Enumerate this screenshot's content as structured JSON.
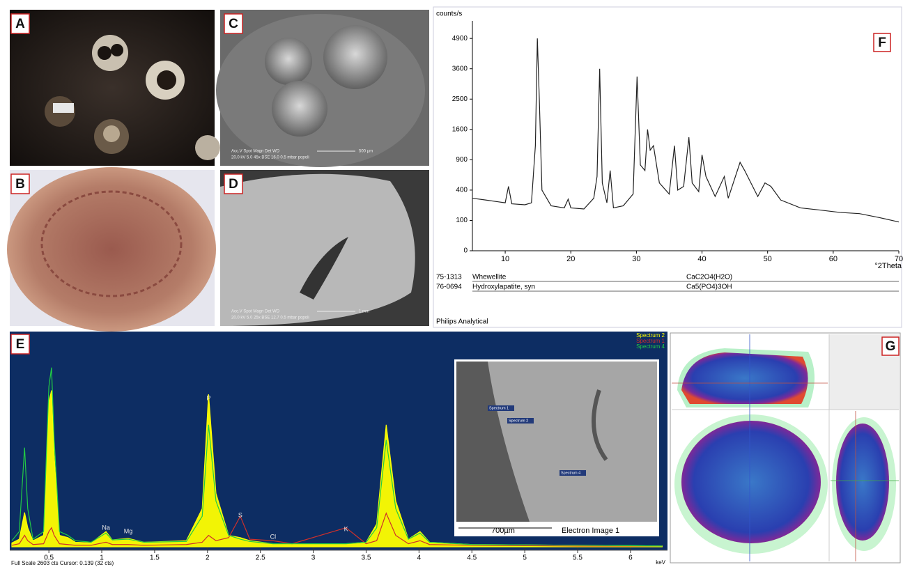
{
  "panel_labels": [
    "A",
    "B",
    "C",
    "D",
    "E",
    "F",
    "G"
  ],
  "sem_captions": {
    "C": [
      "Acc.V  Spot Magn    Det  WD",
      "20.0 kV 5.0   45x    BSE 16.0  0.5 mbar    popoli",
      "500 µm"
    ],
    "D": [
      "Acc.V  Spot Magn    Det  WD",
      "20.0 kV 5.0   25x    BSE 12.7  0.5 mbar    popoli",
      "1 mm"
    ]
  },
  "chart_data": [
    {
      "type": "line",
      "y_label": "counts/s",
      "x_label": "°2Theta",
      "x": [
        5,
        7,
        9,
        10,
        10.5,
        11,
        13,
        14,
        14.6,
        14.9,
        15.2,
        15.6,
        17,
        19,
        19.6,
        20,
        22,
        23.5,
        24,
        24.4,
        24.8,
        25.5,
        26,
        26.5,
        28,
        29.5,
        30.1,
        30.6,
        31.3,
        31.7,
        32.1,
        32.6,
        33.5,
        35,
        35.8,
        36.3,
        37.2,
        38,
        38.5,
        39.5,
        40,
        40.6,
        42,
        43.4,
        44,
        45.8,
        46.5,
        47.2,
        48.5,
        49.6,
        50.5,
        52,
        55,
        58,
        61,
        64,
        67,
        70
      ],
      "values": [
        300,
        280,
        260,
        250,
        450,
        240,
        230,
        250,
        1200,
        4900,
        2500,
        400,
        220,
        200,
        290,
        200,
        190,
        300,
        600,
        3600,
        500,
        250,
        700,
        200,
        220,
        350,
        3300,
        800,
        700,
        1600,
        1100,
        1200,
        500,
        350,
        1200,
        400,
        450,
        1400,
        500,
        380,
        1000,
        600,
        320,
        600,
        300,
        850,
        700,
        550,
        320,
        500,
        450,
        280,
        200,
        180,
        160,
        150,
        120,
        90
      ],
      "color": "#222222",
      "xlim": [
        5,
        70
      ],
      "xticks": [
        10,
        20,
        30,
        40,
        50,
        60,
        70
      ],
      "ylim": [
        0,
        5400
      ],
      "yticks": [
        0,
        100,
        400,
        900,
        1600,
        2500,
        3600,
        4900
      ],
      "y_scale": "sqrt",
      "references": [
        {
          "code": "75-1313",
          "name": "Whewellite",
          "formula": "CaC2O4(H2O)"
        },
        {
          "code": "76-0694",
          "name": "Hydroxylapatite, syn",
          "formula": "Ca5(PO4)3OH"
        }
      ],
      "footer": "Philips Analytical"
    },
    {
      "type": "line",
      "x_label": "keV",
      "x": [
        0.15,
        0.22,
        0.27,
        0.3,
        0.35,
        0.45,
        0.5,
        0.525,
        0.55,
        0.6,
        0.68,
        0.75,
        0.9,
        1.04,
        1.1,
        1.25,
        1.4,
        1.8,
        1.95,
        2.01,
        2.08,
        2.2,
        2.31,
        2.4,
        2.62,
        2.8,
        3.31,
        3.5,
        3.6,
        3.69,
        3.78,
        3.9,
        4.01,
        4.1,
        4.5,
        5,
        5.5,
        6,
        6.3
      ],
      "series": [
        {
          "name": "Spectrum 2",
          "color": "#ffff00",
          "values": [
            50,
            100,
            450,
            250,
            80,
            150,
            1900,
            2050,
            1200,
            150,
            120,
            60,
            50,
            200,
            90,
            110,
            60,
            80,
            500,
            2000,
            700,
            150,
            120,
            80,
            40,
            40,
            40,
            60,
            300,
            1600,
            600,
            100,
            200,
            60,
            30,
            25,
            20,
            15,
            10
          ]
        },
        {
          "name": "Spectrum 1",
          "color": "#d0302a",
          "values": [
            20,
            40,
            150,
            80,
            30,
            40,
            200,
            250,
            150,
            40,
            30,
            20,
            20,
            60,
            30,
            30,
            20,
            30,
            60,
            150,
            80,
            120,
            400,
            100,
            80,
            40,
            250,
            40,
            80,
            440,
            150,
            40,
            80,
            30,
            20,
            15,
            10,
            10,
            10
          ]
        },
        {
          "name": "Spectrum 4",
          "color": "#22cc44",
          "values": [
            80,
            200,
            1300,
            500,
            100,
            200,
            2100,
            2350,
            1400,
            200,
            150,
            80,
            60,
            180,
            90,
            100,
            60,
            70,
            400,
            1600,
            600,
            150,
            100,
            70,
            40,
            40,
            40,
            60,
            250,
            1400,
            500,
            100,
            180,
            60,
            30,
            25,
            20,
            15,
            10
          ]
        }
      ],
      "xlim": [
        0.13,
        6.35
      ],
      "xticks": [
        0.5,
        1,
        1.5,
        2,
        2.5,
        3,
        3.5,
        4,
        4.5,
        5,
        5.5,
        6
      ],
      "ylim": [
        0,
        2603
      ],
      "element_labels": [
        "Na",
        "Mg",
        "P",
        "S",
        "Cl",
        "K"
      ],
      "footer": "Full Scale 2603 cts Cursor: 0.139  (32 cts)",
      "inset": {
        "title": "Electron Image 1",
        "scale": "700µm",
        "points": [
          "Spectrum 1",
          "Spectrum 2",
          "Spectrum 4"
        ]
      }
    }
  ]
}
